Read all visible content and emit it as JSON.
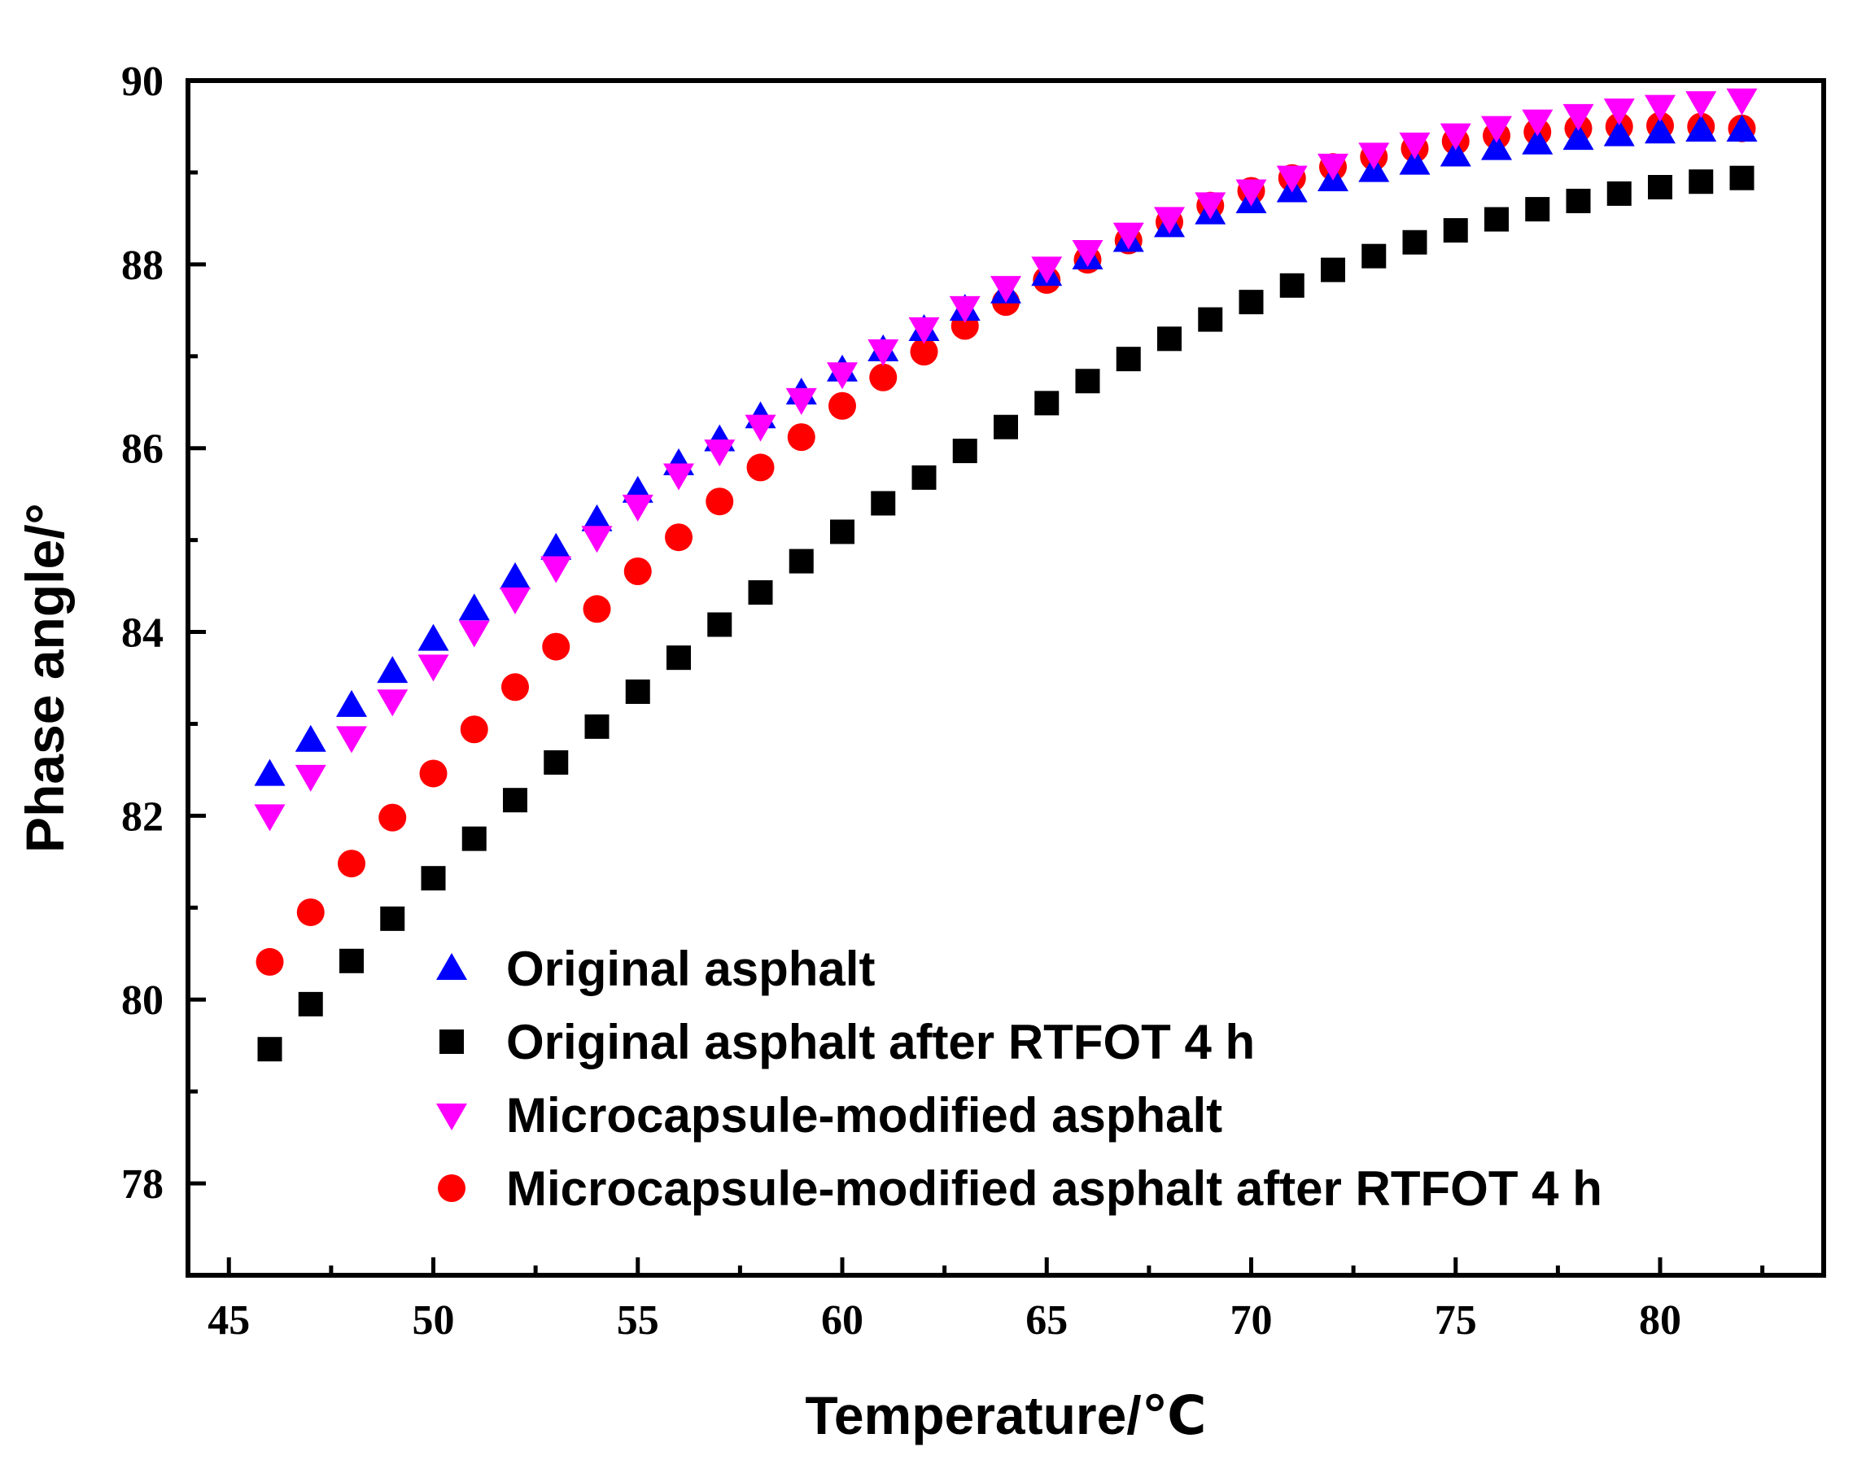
{
  "chart_data": {
    "type": "scatter",
    "title": "",
    "xlabel": "Temperature/℃",
    "ylabel": "Phase angle/°",
    "xlim": [
      44,
      84
    ],
    "ylim": [
      77,
      90
    ],
    "xticks": [
      45,
      50,
      55,
      60,
      65,
      70,
      75,
      80
    ],
    "yticks": [
      78,
      80,
      82,
      84,
      86,
      88,
      90
    ],
    "grid": false,
    "legend_position": "bottom-right",
    "x": [
      46,
      47,
      48,
      49,
      50,
      51,
      52,
      53,
      54,
      55,
      56,
      57,
      58,
      59,
      60,
      61,
      62,
      63,
      64,
      65,
      66,
      67,
      68,
      69,
      70,
      71,
      72,
      73,
      74,
      75,
      76,
      77,
      78,
      79,
      80,
      81,
      82
    ],
    "series": [
      {
        "name": "Original asphalt",
        "marker": "triangle-up",
        "color": "#0000FF",
        "values": [
          82.45,
          82.82,
          83.2,
          83.57,
          83.92,
          84.25,
          84.59,
          84.91,
          85.22,
          85.53,
          85.83,
          86.09,
          86.34,
          86.6,
          86.85,
          87.07,
          87.29,
          87.51,
          87.7,
          87.89,
          88.07,
          88.26,
          88.42,
          88.56,
          88.68,
          88.8,
          88.92,
          89.02,
          89.1,
          89.19,
          89.26,
          89.32,
          89.37,
          89.41,
          89.44,
          89.46,
          89.46
        ]
      },
      {
        "name": "Original asphalt after RTFOT 4 h",
        "marker": "square",
        "color": "#000000",
        "values": [
          79.46,
          79.95,
          80.42,
          80.88,
          81.32,
          81.75,
          82.17,
          82.58,
          82.97,
          83.35,
          83.72,
          84.08,
          84.43,
          84.77,
          85.09,
          85.4,
          85.68,
          85.97,
          86.23,
          86.49,
          86.73,
          86.97,
          87.19,
          87.4,
          87.59,
          87.77,
          87.94,
          88.09,
          88.24,
          88.37,
          88.49,
          88.6,
          88.69,
          88.77,
          88.84,
          88.9,
          88.94
        ]
      },
      {
        "name": "Microcapsule-modified asphalt",
        "marker": "triangle-down",
        "color": "#FF00FF",
        "values": [
          82.0,
          82.43,
          82.85,
          83.25,
          83.63,
          84.0,
          84.36,
          84.7,
          85.03,
          85.37,
          85.71,
          85.97,
          86.24,
          86.53,
          86.81,
          87.06,
          87.3,
          87.53,
          87.75,
          87.96,
          88.14,
          88.33,
          88.5,
          88.66,
          88.8,
          88.95,
          89.08,
          89.2,
          89.31,
          89.41,
          89.49,
          89.56,
          89.62,
          89.68,
          89.72,
          89.76,
          89.79
        ]
      },
      {
        "name": "Microcapsule-modified asphalt after RTFOT 4 h",
        "marker": "circle",
        "color": "#FF0000",
        "values": [
          80.41,
          80.95,
          81.48,
          81.98,
          82.46,
          82.94,
          83.4,
          83.84,
          84.25,
          84.66,
          85.03,
          85.42,
          85.79,
          86.12,
          86.46,
          86.77,
          87.05,
          87.33,
          87.59,
          87.83,
          88.05,
          88.26,
          88.46,
          88.64,
          88.8,
          88.94,
          89.06,
          89.17,
          89.26,
          89.34,
          89.4,
          89.44,
          89.48,
          89.5,
          89.51,
          89.5,
          89.48
        ]
      }
    ]
  }
}
